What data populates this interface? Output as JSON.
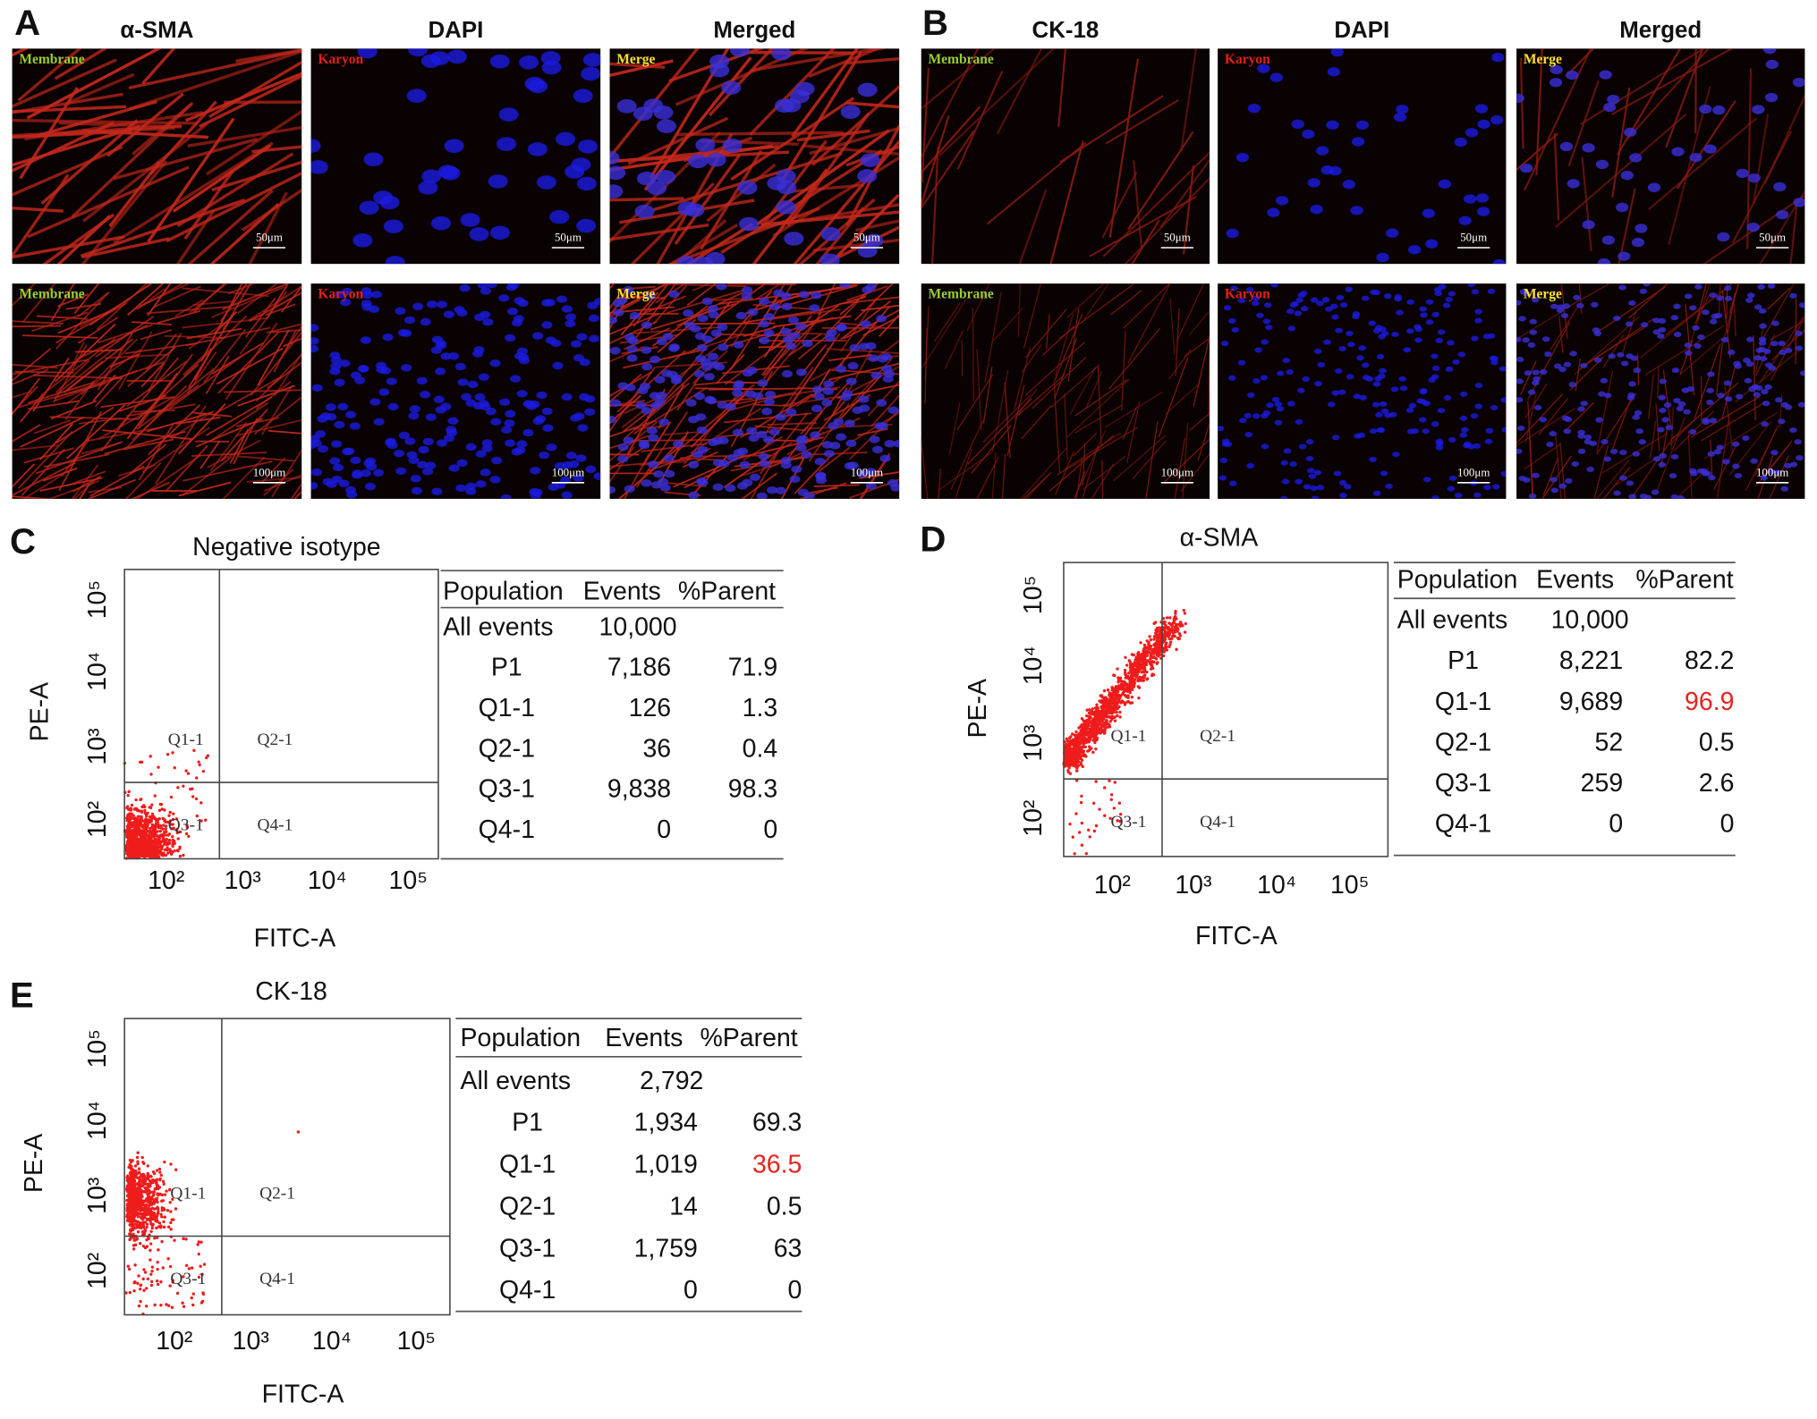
{
  "image_panels": [
    {
      "label": "A",
      "columns": [
        "α-SMA",
        "DAPI",
        "Merged"
      ],
      "rows": [
        [
          {
            "tag": "Membrane",
            "scale": "50μm"
          },
          {
            "tag": "Karyon",
            "scale": "50μm"
          },
          {
            "tag": "Merge",
            "scale": "50μm"
          }
        ],
        [
          {
            "tag": "Membrane",
            "scale": "100μm"
          },
          {
            "tag": "Karyon",
            "scale": "100μm"
          },
          {
            "tag": "Merge",
            "scale": "100μm"
          }
        ]
      ]
    },
    {
      "label": "B",
      "columns": [
        "CK-18",
        "DAPI",
        "Merged"
      ],
      "rows": [
        [
          {
            "tag": "Membrane",
            "scale": "50μm"
          },
          {
            "tag": "Karyon",
            "scale": "50μm"
          },
          {
            "tag": "Merge",
            "scale": "50μm"
          }
        ],
        [
          {
            "tag": "Membrane",
            "scale": "100μm"
          },
          {
            "tag": "Karyon",
            "scale": "100μm"
          },
          {
            "tag": "Merge",
            "scale": "100μm"
          }
        ]
      ]
    }
  ],
  "flow_panels": [
    {
      "label": "C",
      "title": "Negative isotype",
      "y_axis": "PE-A",
      "x_axis": "FITC-A",
      "yticks": [
        "10⁵",
        "10⁴",
        "10³",
        "10²"
      ],
      "xticks": [
        "10²",
        "10³",
        "10⁴",
        "10⁵"
      ],
      "quadrants": [
        "Q1-1",
        "Q2-1",
        "Q3-1",
        "Q4-1"
      ],
      "table": {
        "header": [
          "Population",
          "Events",
          "%Parent"
        ],
        "rows": [
          {
            "cells": [
              "All events",
              "10,000"
            ]
          },
          {
            "cells": [
              "P1",
              "7,186",
              "71.9"
            ]
          },
          {
            "cells": [
              "Q1-1",
              "126",
              "1.3"
            ]
          },
          {
            "cells": [
              "Q2-1",
              "36",
              "0.4"
            ]
          },
          {
            "cells": [
              "Q3-1",
              "9,838",
              "98.3"
            ]
          },
          {
            "cells": [
              "Q4-1",
              "0",
              "0"
            ]
          }
        ]
      }
    },
    {
      "label": "D",
      "title": "α-SMA",
      "y_axis": "PE-A",
      "x_axis": "FITC-A",
      "yticks": [
        "10⁵",
        "10⁴",
        "10³",
        "10²"
      ],
      "xticks": [
        "10²",
        "10³",
        "10⁴",
        "10⁵"
      ],
      "quadrants": [
        "Q1-1",
        "Q2-1",
        "Q3-1",
        "Q4-1"
      ],
      "table": {
        "header": [
          "Population",
          "Events",
          "%Parent"
        ],
        "rows": [
          {
            "cells": [
              "All events",
              "10,000"
            ]
          },
          {
            "cells": [
              "P1",
              "8,221",
              "82.2"
            ]
          },
          {
            "cells": [
              "Q1-1",
              "9,689",
              "96.9"
            ],
            "value_color": "#e8231e"
          },
          {
            "cells": [
              "Q2-1",
              "52",
              "0.5"
            ]
          },
          {
            "cells": [
              "Q3-1",
              "259",
              "2.6"
            ]
          },
          {
            "cells": [
              "Q4-1",
              "0",
              "0"
            ]
          }
        ]
      }
    },
    {
      "label": "E",
      "title": "CK-18",
      "y_axis": "PE-A",
      "x_axis": "FITC-A",
      "yticks": [
        "10⁵",
        "10⁴",
        "10³",
        "10²"
      ],
      "xticks": [
        "10²",
        "10³",
        "10⁴",
        "10⁵"
      ],
      "quadrants": [
        "Q1-1",
        "Q2-1",
        "Q3-1",
        "Q4-1"
      ],
      "table": {
        "header": [
          "Population",
          "Events",
          "%Parent"
        ],
        "rows": [
          {
            "cells": [
              "All events",
              "2,792"
            ]
          },
          {
            "cells": [
              "P1",
              "1,934",
              "69.3"
            ]
          },
          {
            "cells": [
              "Q1-1",
              "1,019",
              "36.5"
            ],
            "value_color": "#e8231e"
          },
          {
            "cells": [
              "Q2-1",
              "14",
              "0.5"
            ]
          },
          {
            "cells": [
              "Q3-1",
              "1,759",
              "63"
            ]
          },
          {
            "cells": [
              "Q4-1",
              "0",
              "0"
            ]
          }
        ]
      }
    }
  ]
}
